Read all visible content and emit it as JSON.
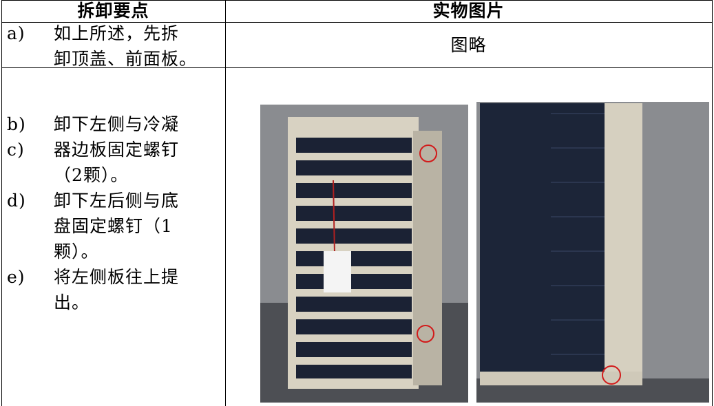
{
  "table": {
    "header": [
      "拆卸要点",
      "实物图片"
    ],
    "rows": [
      {
        "steps": [
          {
            "marker": "a)",
            "text": "如上所述，先拆"
          },
          {
            "text": "卸顶盖、前面板。"
          }
        ],
        "picture": "图略"
      },
      {
        "steps": [
          {
            "marker": "b)",
            "text": "卸下左侧与冷凝"
          },
          {
            "marker": "c)",
            "text": "器边板固定螺钉"
          },
          {
            "text": "（2颗）。"
          },
          {
            "marker": "d)",
            "text": "卸下左后侧与底"
          },
          {
            "text": "盘固定螺钉（1"
          },
          {
            "text": "颗）。"
          },
          {
            "marker": "e)",
            "text": "将左侧板往上提"
          },
          {
            "text": "出。"
          }
        ]
      }
    ]
  }
}
